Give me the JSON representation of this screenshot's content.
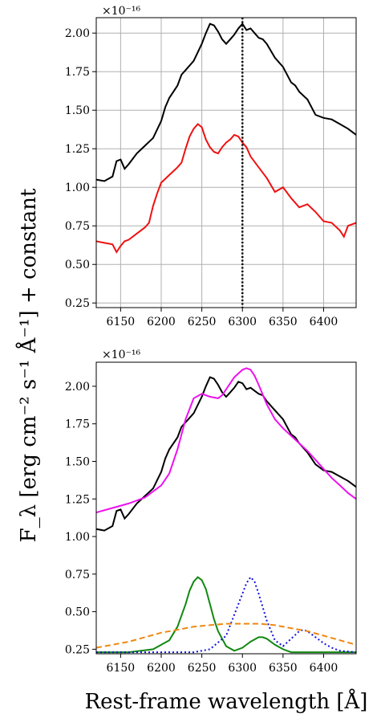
{
  "figure": {
    "ylabel": "F_λ [erg cm⁻² s⁻¹ Å⁻¹] + constant",
    "xlabel": "Rest-frame wavelength [Å]"
  },
  "chart_data": [
    {
      "type": "line",
      "panel": "top",
      "offset_text": "×10⁻¹⁶",
      "xlim": [
        6120,
        6440
      ],
      "ylim": [
        0.22,
        2.1
      ],
      "xticks": [
        6150,
        6200,
        6250,
        6300,
        6350,
        6400
      ],
      "yticks": [
        0.25,
        0.5,
        0.75,
        1.0,
        1.25,
        1.5,
        1.75,
        2.0
      ],
      "ytick_labels": [
        "0.25",
        "0.50",
        "0.75",
        "1.00",
        "1.25",
        "1.50",
        "1.75",
        "2.00"
      ],
      "grid": true,
      "vline": {
        "x": 6300,
        "style": "dotted",
        "color": "#000000"
      },
      "series": [
        {
          "color": "#000000",
          "style": "solid",
          "x": [
            6120,
            6130,
            6140,
            6145,
            6150,
            6155,
            6160,
            6170,
            6180,
            6190,
            6200,
            6205,
            6210,
            6220,
            6225,
            6230,
            6240,
            6250,
            6255,
            6260,
            6265,
            6270,
            6275,
            6280,
            6285,
            6290,
            6295,
            6300,
            6305,
            6310,
            6315,
            6320,
            6325,
            6330,
            6340,
            6350,
            6360,
            6365,
            6370,
            6380,
            6390,
            6400,
            6410,
            6420,
            6430,
            6440
          ],
          "y": [
            1.05,
            1.04,
            1.07,
            1.17,
            1.18,
            1.12,
            1.15,
            1.22,
            1.27,
            1.32,
            1.43,
            1.52,
            1.58,
            1.66,
            1.73,
            1.76,
            1.82,
            1.93,
            2.0,
            2.06,
            2.05,
            2.01,
            1.96,
            1.93,
            1.96,
            1.99,
            2.03,
            2.06,
            2.02,
            2.03,
            2.0,
            1.97,
            1.96,
            1.93,
            1.84,
            1.78,
            1.68,
            1.66,
            1.62,
            1.57,
            1.47,
            1.45,
            1.44,
            1.41,
            1.38,
            1.34
          ]
        },
        {
          "color": "#ee1111",
          "style": "solid",
          "x": [
            6120,
            6130,
            6140,
            6145,
            6150,
            6155,
            6160,
            6170,
            6180,
            6185,
            6190,
            6195,
            6200,
            6210,
            6220,
            6225,
            6230,
            6235,
            6240,
            6245,
            6250,
            6255,
            6260,
            6265,
            6270,
            6275,
            6280,
            6285,
            6290,
            6295,
            6300,
            6305,
            6310,
            6320,
            6330,
            6340,
            6350,
            6360,
            6370,
            6380,
            6390,
            6400,
            6410,
            6420,
            6425,
            6430,
            6440
          ],
          "y": [
            0.65,
            0.64,
            0.63,
            0.58,
            0.62,
            0.65,
            0.66,
            0.7,
            0.74,
            0.77,
            0.88,
            0.96,
            1.03,
            1.08,
            1.13,
            1.16,
            1.25,
            1.33,
            1.38,
            1.41,
            1.39,
            1.31,
            1.26,
            1.23,
            1.22,
            1.26,
            1.29,
            1.31,
            1.34,
            1.33,
            1.29,
            1.26,
            1.2,
            1.13,
            1.06,
            0.97,
            1.0,
            0.93,
            0.87,
            0.89,
            0.84,
            0.78,
            0.77,
            0.72,
            0.68,
            0.75,
            0.77
          ]
        }
      ]
    },
    {
      "type": "line",
      "panel": "bottom",
      "offset_text": "×10⁻¹⁶",
      "xlim": [
        6120,
        6440
      ],
      "ylim": [
        0.22,
        2.16
      ],
      "xticks": [
        6150,
        6200,
        6250,
        6300,
        6350,
        6400
      ],
      "yticks": [
        0.25,
        0.5,
        0.75,
        1.0,
        1.25,
        1.5,
        1.75,
        2.0
      ],
      "ytick_labels": [
        "0.25",
        "0.50",
        "0.75",
        "1.00",
        "1.25",
        "1.50",
        "1.75",
        "2.00"
      ],
      "grid": false,
      "series": [
        {
          "color": "#000000",
          "style": "solid",
          "x": [
            6120,
            6130,
            6140,
            6145,
            6150,
            6155,
            6160,
            6170,
            6180,
            6190,
            6200,
            6205,
            6210,
            6220,
            6225,
            6230,
            6240,
            6250,
            6255,
            6260,
            6265,
            6270,
            6275,
            6280,
            6285,
            6290,
            6295,
            6300,
            6305,
            6310,
            6315,
            6320,
            6325,
            6330,
            6340,
            6350,
            6360,
            6365,
            6370,
            6380,
            6390,
            6400,
            6410,
            6420,
            6430,
            6440
          ],
          "y": [
            1.05,
            1.04,
            1.07,
            1.17,
            1.18,
            1.12,
            1.15,
            1.22,
            1.27,
            1.32,
            1.43,
            1.52,
            1.58,
            1.66,
            1.73,
            1.76,
            1.82,
            1.93,
            2.0,
            2.06,
            2.05,
            2.01,
            1.96,
            1.93,
            1.96,
            1.99,
            2.03,
            2.02,
            1.98,
            1.99,
            1.97,
            1.95,
            1.94,
            1.9,
            1.84,
            1.78,
            1.68,
            1.66,
            1.62,
            1.56,
            1.48,
            1.44,
            1.43,
            1.4,
            1.37,
            1.33
          ]
        },
        {
          "color": "#ee11ee",
          "style": "solid",
          "x": [
            6120,
            6140,
            6160,
            6180,
            6200,
            6210,
            6220,
            6230,
            6240,
            6250,
            6260,
            6270,
            6275,
            6280,
            6290,
            6300,
            6305,
            6310,
            6315,
            6320,
            6330,
            6340,
            6350,
            6360,
            6370,
            6380,
            6390,
            6400,
            6410,
            6420,
            6430,
            6440
          ],
          "y": [
            1.16,
            1.19,
            1.22,
            1.26,
            1.34,
            1.42,
            1.58,
            1.78,
            1.92,
            1.95,
            1.93,
            1.92,
            1.94,
            1.98,
            2.06,
            2.11,
            2.12,
            2.11,
            2.07,
            2.01,
            1.88,
            1.78,
            1.72,
            1.67,
            1.62,
            1.57,
            1.51,
            1.45,
            1.39,
            1.34,
            1.29,
            1.25
          ]
        },
        {
          "color": "#118811",
          "style": "solid",
          "x": [
            6120,
            6160,
            6190,
            6210,
            6220,
            6230,
            6235,
            6240,
            6245,
            6250,
            6255,
            6260,
            6265,
            6270,
            6280,
            6290,
            6300,
            6310,
            6320,
            6325,
            6330,
            6340,
            6350,
            6360,
            6380,
            6400,
            6440
          ],
          "y": [
            0.23,
            0.23,
            0.25,
            0.31,
            0.4,
            0.55,
            0.64,
            0.7,
            0.73,
            0.71,
            0.65,
            0.55,
            0.45,
            0.37,
            0.27,
            0.24,
            0.26,
            0.3,
            0.33,
            0.33,
            0.32,
            0.28,
            0.25,
            0.23,
            0.23,
            0.23,
            0.23
          ]
        },
        {
          "color": "#1111dd",
          "style": "dotted",
          "x": [
            6120,
            6240,
            6260,
            6280,
            6290,
            6300,
            6305,
            6310,
            6315,
            6320,
            6330,
            6340,
            6350,
            6360,
            6370,
            6375,
            6380,
            6390,
            6400,
            6410,
            6420,
            6440
          ],
          "y": [
            0.23,
            0.23,
            0.25,
            0.34,
            0.48,
            0.62,
            0.69,
            0.73,
            0.7,
            0.62,
            0.44,
            0.31,
            0.27,
            0.32,
            0.37,
            0.38,
            0.37,
            0.33,
            0.29,
            0.26,
            0.24,
            0.23
          ]
        },
        {
          "color": "#ee8811",
          "style": "dashed",
          "x": [
            6120,
            6140,
            6160,
            6180,
            6200,
            6220,
            6240,
            6260,
            6280,
            6300,
            6320,
            6340,
            6360,
            6380,
            6400,
            6420,
            6440
          ],
          "y": [
            0.26,
            0.28,
            0.3,
            0.33,
            0.36,
            0.38,
            0.4,
            0.41,
            0.42,
            0.42,
            0.42,
            0.41,
            0.39,
            0.37,
            0.34,
            0.31,
            0.28
          ]
        }
      ]
    }
  ]
}
